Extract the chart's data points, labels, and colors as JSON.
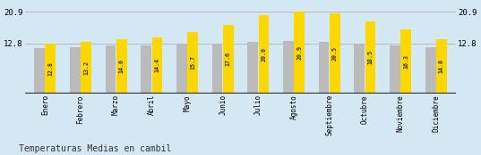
{
  "months": [
    "Enero",
    "Febrero",
    "Marzo",
    "Abril",
    "Mayo",
    "Junio",
    "Julio",
    "Agosto",
    "Septiembre",
    "Octubre",
    "Noviembre",
    "Diciembre"
  ],
  "values": [
    12.8,
    13.2,
    14.0,
    14.4,
    15.7,
    17.6,
    20.0,
    20.9,
    20.5,
    18.5,
    16.3,
    14.0
  ],
  "gray_values": [
    11.5,
    11.8,
    12.2,
    12.2,
    12.5,
    12.8,
    13.2,
    13.5,
    13.3,
    12.8,
    12.3,
    11.8
  ],
  "bar_color": "#FFD700",
  "gray_color": "#BBBBBB",
  "background_color": "#D4E8F4",
  "title": "Temperaturas Medias en cambil",
  "yticks": [
    12.8,
    20.9
  ],
  "ylim": [
    0,
    23.0
  ],
  "title_fontsize": 7.0,
  "value_fontsize": 4.8
}
